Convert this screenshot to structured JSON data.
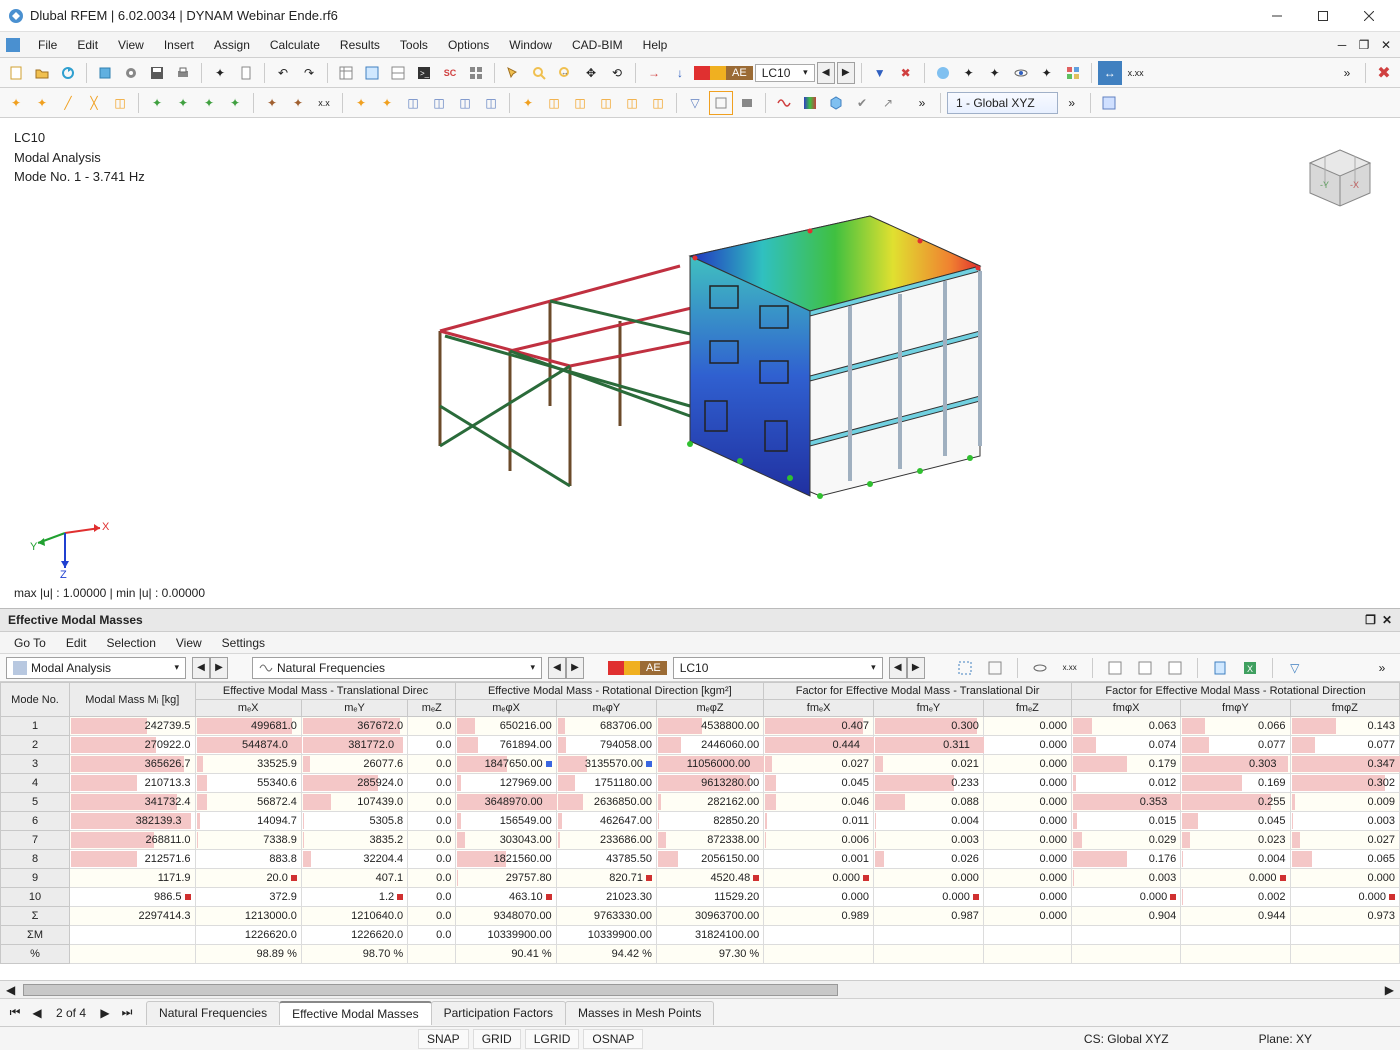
{
  "title": "Dlubal RFEM | 6.02.0034 | DYNAM Webinar Ende.rf6",
  "menu": [
    "File",
    "Edit",
    "View",
    "Insert",
    "Assign",
    "Calculate",
    "Results",
    "Tools",
    "Options",
    "Window",
    "CAD-BIM",
    "Help"
  ],
  "lc_badge": {
    "swatches": [
      "#e03030",
      "#f0b020"
    ],
    "label": "AE",
    "value": "LC10"
  },
  "view_combo": "1 - Global XYZ",
  "viewport": {
    "line1": "LC10",
    "line2": "Modal Analysis",
    "line3": "Mode No. 1 - 3.741 Hz",
    "bottom": "max |u| : 1.00000 | min |u| : 0.00000",
    "axis_labels": {
      "x": "X",
      "y": "Y",
      "z": "Z"
    },
    "axis_colors": {
      "x": "#e03030",
      "y": "#20a030",
      "z": "#2040d0"
    }
  },
  "panel": {
    "title": "Effective Modal Masses",
    "menu": [
      "Go To",
      "Edit",
      "Selection",
      "View",
      "Settings"
    ],
    "combo1": "Modal Analysis",
    "combo2": "Natural Frequencies",
    "lc_label": "LC10"
  },
  "table": {
    "group_headers": [
      {
        "label": "Mode No.",
        "span": 1
      },
      {
        "label": "Modal Mass Mᵢ [kg]",
        "span": 1
      },
      {
        "label": "Effective Modal Mass - Translational Direc",
        "span": 3
      },
      {
        "label": "Effective Modal Mass - Rotational Direction [kgm²]",
        "span": 3
      },
      {
        "label": "Factor for Effective Modal Mass - Translational Dir",
        "span": 3
      },
      {
        "label": "Factor for Effective Modal Mass - Rotational Direction",
        "span": 3
      }
    ],
    "sub_headers": [
      "",
      "",
      "mₑX",
      "mₑY",
      "mₑZ",
      "mₑφX",
      "mₑφY",
      "mₑφZ",
      "fmₑX",
      "fmₑY",
      "fmₑZ",
      "fmφX",
      "fmφY",
      "fmφZ"
    ],
    "max_vals": [
      400000,
      550000,
      400000,
      1,
      3700000,
      10400000,
      11100000,
      0.45,
      0.32,
      1,
      0.36,
      0.31,
      0.35
    ],
    "rows": [
      {
        "id": "1",
        "cells": [
          {
            "v": "242739.5",
            "b": 0.61
          },
          {
            "v": "499681.0",
            "b": 0.91
          },
          {
            "v": "367672.0",
            "b": 0.92
          },
          {
            "v": "0.0",
            "b": 0
          },
          {
            "v": "650216.00",
            "b": 0.18
          },
          {
            "v": "683706.00",
            "b": 0.07
          },
          {
            "v": "4538800.00",
            "b": 0.41
          },
          {
            "v": "0.407",
            "b": 0.9
          },
          {
            "v": "0.300",
            "b": 0.94
          },
          {
            "v": "0.000",
            "b": 0
          },
          {
            "v": "0.063",
            "b": 0.18
          },
          {
            "v": "0.066",
            "b": 0.21
          },
          {
            "v": "0.143",
            "b": 0.41
          }
        ]
      },
      {
        "id": "2",
        "cells": [
          {
            "v": "270922.0",
            "b": 0.68
          },
          {
            "v": "544874.0",
            "b": 1.0,
            "m": "blue"
          },
          {
            "v": "381772.0",
            "b": 0.95,
            "m": "blue"
          },
          {
            "v": "0.0",
            "b": 0
          },
          {
            "v": "761894.00",
            "b": 0.21
          },
          {
            "v": "794058.00",
            "b": 0.08
          },
          {
            "v": "2446060.00",
            "b": 0.22
          },
          {
            "v": "0.444",
            "b": 1.0,
            "m": "blue"
          },
          {
            "v": "0.311",
            "b": 1.0,
            "m": "blue"
          },
          {
            "v": "0.000",
            "b": 0
          },
          {
            "v": "0.074",
            "b": 0.21
          },
          {
            "v": "0.077",
            "b": 0.25
          },
          {
            "v": "0.077",
            "b": 0.22
          }
        ]
      },
      {
        "id": "3",
        "cells": [
          {
            "v": "365626.7",
            "b": 0.91
          },
          {
            "v": "33525.9",
            "b": 0.06
          },
          {
            "v": "26077.6",
            "b": 0.07
          },
          {
            "v": "0.0",
            "b": 0
          },
          {
            "v": "1847650.00",
            "b": 0.5,
            "m": "blue"
          },
          {
            "v": "3135570.00",
            "b": 0.3,
            "m": "blue"
          },
          {
            "v": "11056000.00",
            "b": 1.0,
            "m": "blue"
          },
          {
            "v": "0.027",
            "b": 0.06
          },
          {
            "v": "0.021",
            "b": 0.07
          },
          {
            "v": "0.000",
            "b": 0
          },
          {
            "v": "0.179",
            "b": 0.5
          },
          {
            "v": "0.303",
            "b": 0.98,
            "m": "blue"
          },
          {
            "v": "0.347",
            "b": 1.0
          }
        ]
      },
      {
        "id": "4",
        "cells": [
          {
            "v": "210713.3",
            "b": 0.53
          },
          {
            "v": "55340.6",
            "b": 0.1
          },
          {
            "v": "285924.0",
            "b": 0.71
          },
          {
            "v": "0.0",
            "b": 0
          },
          {
            "v": "127969.00",
            "b": 0.04
          },
          {
            "v": "1751180.00",
            "b": 0.17
          },
          {
            "v": "9613280.00",
            "b": 0.87
          },
          {
            "v": "0.045",
            "b": 0.1
          },
          {
            "v": "0.233",
            "b": 0.73
          },
          {
            "v": "0.000",
            "b": 0
          },
          {
            "v": "0.012",
            "b": 0.03
          },
          {
            "v": "0.169",
            "b": 0.55
          },
          {
            "v": "0.302",
            "b": 0.86
          }
        ]
      },
      {
        "id": "5",
        "cells": [
          {
            "v": "341732.4",
            "b": 0.85
          },
          {
            "v": "56872.4",
            "b": 0.1
          },
          {
            "v": "107439.0",
            "b": 0.27
          },
          {
            "v": "0.0",
            "b": 0
          },
          {
            "v": "3648970.00",
            "b": 1.0,
            "m": "blue"
          },
          {
            "v": "2636850.00",
            "b": 0.25
          },
          {
            "v": "282162.00",
            "b": 0.03
          },
          {
            "v": "0.046",
            "b": 0.1
          },
          {
            "v": "0.088",
            "b": 0.28
          },
          {
            "v": "0.000",
            "b": 0
          },
          {
            "v": "0.353",
            "b": 1.0,
            "m": "blue"
          },
          {
            "v": "0.255",
            "b": 0.82
          },
          {
            "v": "0.009",
            "b": 0.03
          }
        ]
      },
      {
        "id": "6",
        "cells": [
          {
            "v": "382139.3",
            "b": 0.96,
            "m": "blue"
          },
          {
            "v": "14094.7",
            "b": 0.03
          },
          {
            "v": "5305.8",
            "b": 0.01
          },
          {
            "v": "0.0",
            "b": 0
          },
          {
            "v": "156549.00",
            "b": 0.04
          },
          {
            "v": "462647.00",
            "b": 0.04
          },
          {
            "v": "82850.20",
            "b": 0.01
          },
          {
            "v": "0.011",
            "b": 0.02
          },
          {
            "v": "0.004",
            "b": 0.01
          },
          {
            "v": "0.000",
            "b": 0
          },
          {
            "v": "0.015",
            "b": 0.04
          },
          {
            "v": "0.045",
            "b": 0.15
          },
          {
            "v": "0.003",
            "b": 0.01
          }
        ]
      },
      {
        "id": "7",
        "cells": [
          {
            "v": "268811.0",
            "b": 0.67
          },
          {
            "v": "7338.9",
            "b": 0.01
          },
          {
            "v": "3835.2",
            "b": 0.01
          },
          {
            "v": "0.0",
            "b": 0
          },
          {
            "v": "303043.00",
            "b": 0.08
          },
          {
            "v": "233686.00",
            "b": 0.02
          },
          {
            "v": "872338.00",
            "b": 0.08
          },
          {
            "v": "0.006",
            "b": 0.01
          },
          {
            "v": "0.003",
            "b": 0.01
          },
          {
            "v": "0.000",
            "b": 0
          },
          {
            "v": "0.029",
            "b": 0.08
          },
          {
            "v": "0.023",
            "b": 0.07
          },
          {
            "v": "0.027",
            "b": 0.08
          }
        ]
      },
      {
        "id": "8",
        "cells": [
          {
            "v": "212571.6",
            "b": 0.53
          },
          {
            "v": "883.8",
            "b": 0.0
          },
          {
            "v": "32204.4",
            "b": 0.08
          },
          {
            "v": "0.0",
            "b": 0
          },
          {
            "v": "1821560.00",
            "b": 0.49
          },
          {
            "v": "43785.50",
            "b": 0.0
          },
          {
            "v": "2056150.00",
            "b": 0.19
          },
          {
            "v": "0.001",
            "b": 0.0
          },
          {
            "v": "0.026",
            "b": 0.08
          },
          {
            "v": "0.000",
            "b": 0
          },
          {
            "v": "0.176",
            "b": 0.5
          },
          {
            "v": "0.004",
            "b": 0.01
          },
          {
            "v": "0.065",
            "b": 0.19
          }
        ]
      },
      {
        "id": "9",
        "cells": [
          {
            "v": "1171.9",
            "b": 0.0
          },
          {
            "v": "20.0",
            "b": 0.0,
            "m": "red"
          },
          {
            "v": "407.1",
            "b": 0.0
          },
          {
            "v": "0.0",
            "b": 0
          },
          {
            "v": "29757.80",
            "b": 0.01
          },
          {
            "v": "820.71",
            "b": 0.0,
            "m": "red"
          },
          {
            "v": "4520.48",
            "b": 0.0,
            "m": "red"
          },
          {
            "v": "0.000",
            "b": 0.0,
            "m": "red"
          },
          {
            "v": "0.000",
            "b": 0.0
          },
          {
            "v": "0.000",
            "b": 0
          },
          {
            "v": "0.003",
            "b": 0.01
          },
          {
            "v": "0.000",
            "b": 0.0,
            "m": "red"
          },
          {
            "v": "0.000",
            "b": 0.0
          }
        ]
      },
      {
        "id": "10",
        "cells": [
          {
            "v": "986.5",
            "b": 0.0,
            "m": "red"
          },
          {
            "v": "372.9",
            "b": 0.0
          },
          {
            "v": "1.2",
            "b": 0.0,
            "m": "red"
          },
          {
            "v": "0.0",
            "b": 0
          },
          {
            "v": "463.10",
            "b": 0.0,
            "m": "red"
          },
          {
            "v": "21023.30",
            "b": 0.0
          },
          {
            "v": "11529.20",
            "b": 0.0
          },
          {
            "v": "0.000",
            "b": 0.0
          },
          {
            "v": "0.000",
            "b": 0.0,
            "m": "red"
          },
          {
            "v": "0.000",
            "b": 0
          },
          {
            "v": "0.000",
            "b": 0.0,
            "m": "red"
          },
          {
            "v": "0.002",
            "b": 0.01
          },
          {
            "v": "0.000",
            "b": 0.0,
            "m": "red"
          }
        ]
      },
      {
        "id": "Σ",
        "cells": [
          {
            "v": "2297414.3"
          },
          {
            "v": "1213000.0"
          },
          {
            "v": "1210640.0"
          },
          {
            "v": "0.0"
          },
          {
            "v": "9348070.00"
          },
          {
            "v": "9763330.00"
          },
          {
            "v": "30963700.00"
          },
          {
            "v": "0.989"
          },
          {
            "v": "0.987"
          },
          {
            "v": "0.000"
          },
          {
            "v": "0.904"
          },
          {
            "v": "0.944"
          },
          {
            "v": "0.973"
          }
        ]
      },
      {
        "id": "ΣM",
        "cells": [
          {
            "v": ""
          },
          {
            "v": "1226620.0"
          },
          {
            "v": "1226620.0"
          },
          {
            "v": "0.0"
          },
          {
            "v": "10339900.00"
          },
          {
            "v": "10339900.00"
          },
          {
            "v": "31824100.00"
          },
          {
            "v": ""
          },
          {
            "v": ""
          },
          {
            "v": ""
          },
          {
            "v": ""
          },
          {
            "v": ""
          },
          {
            "v": ""
          }
        ]
      },
      {
        "id": "%",
        "cells": [
          {
            "v": ""
          },
          {
            "v": "98.89 %"
          },
          {
            "v": "98.70 %"
          },
          {
            "v": ""
          },
          {
            "v": "90.41 %"
          },
          {
            "v": "94.42 %"
          },
          {
            "v": "97.30 %"
          },
          {
            "v": ""
          },
          {
            "v": ""
          },
          {
            "v": ""
          },
          {
            "v": ""
          },
          {
            "v": ""
          },
          {
            "v": ""
          }
        ]
      }
    ]
  },
  "pager": "2 of 4",
  "tabs": [
    "Natural Frequencies",
    "Effective Modal Masses",
    "Participation Factors",
    "Masses in Mesh Points"
  ],
  "active_tab": 1,
  "status": {
    "snap": "SNAP",
    "grid": "GRID",
    "lgrid": "LGRID",
    "osnap": "OSNAP",
    "cs": "CS: Global XYZ",
    "plane": "Plane: XY"
  }
}
